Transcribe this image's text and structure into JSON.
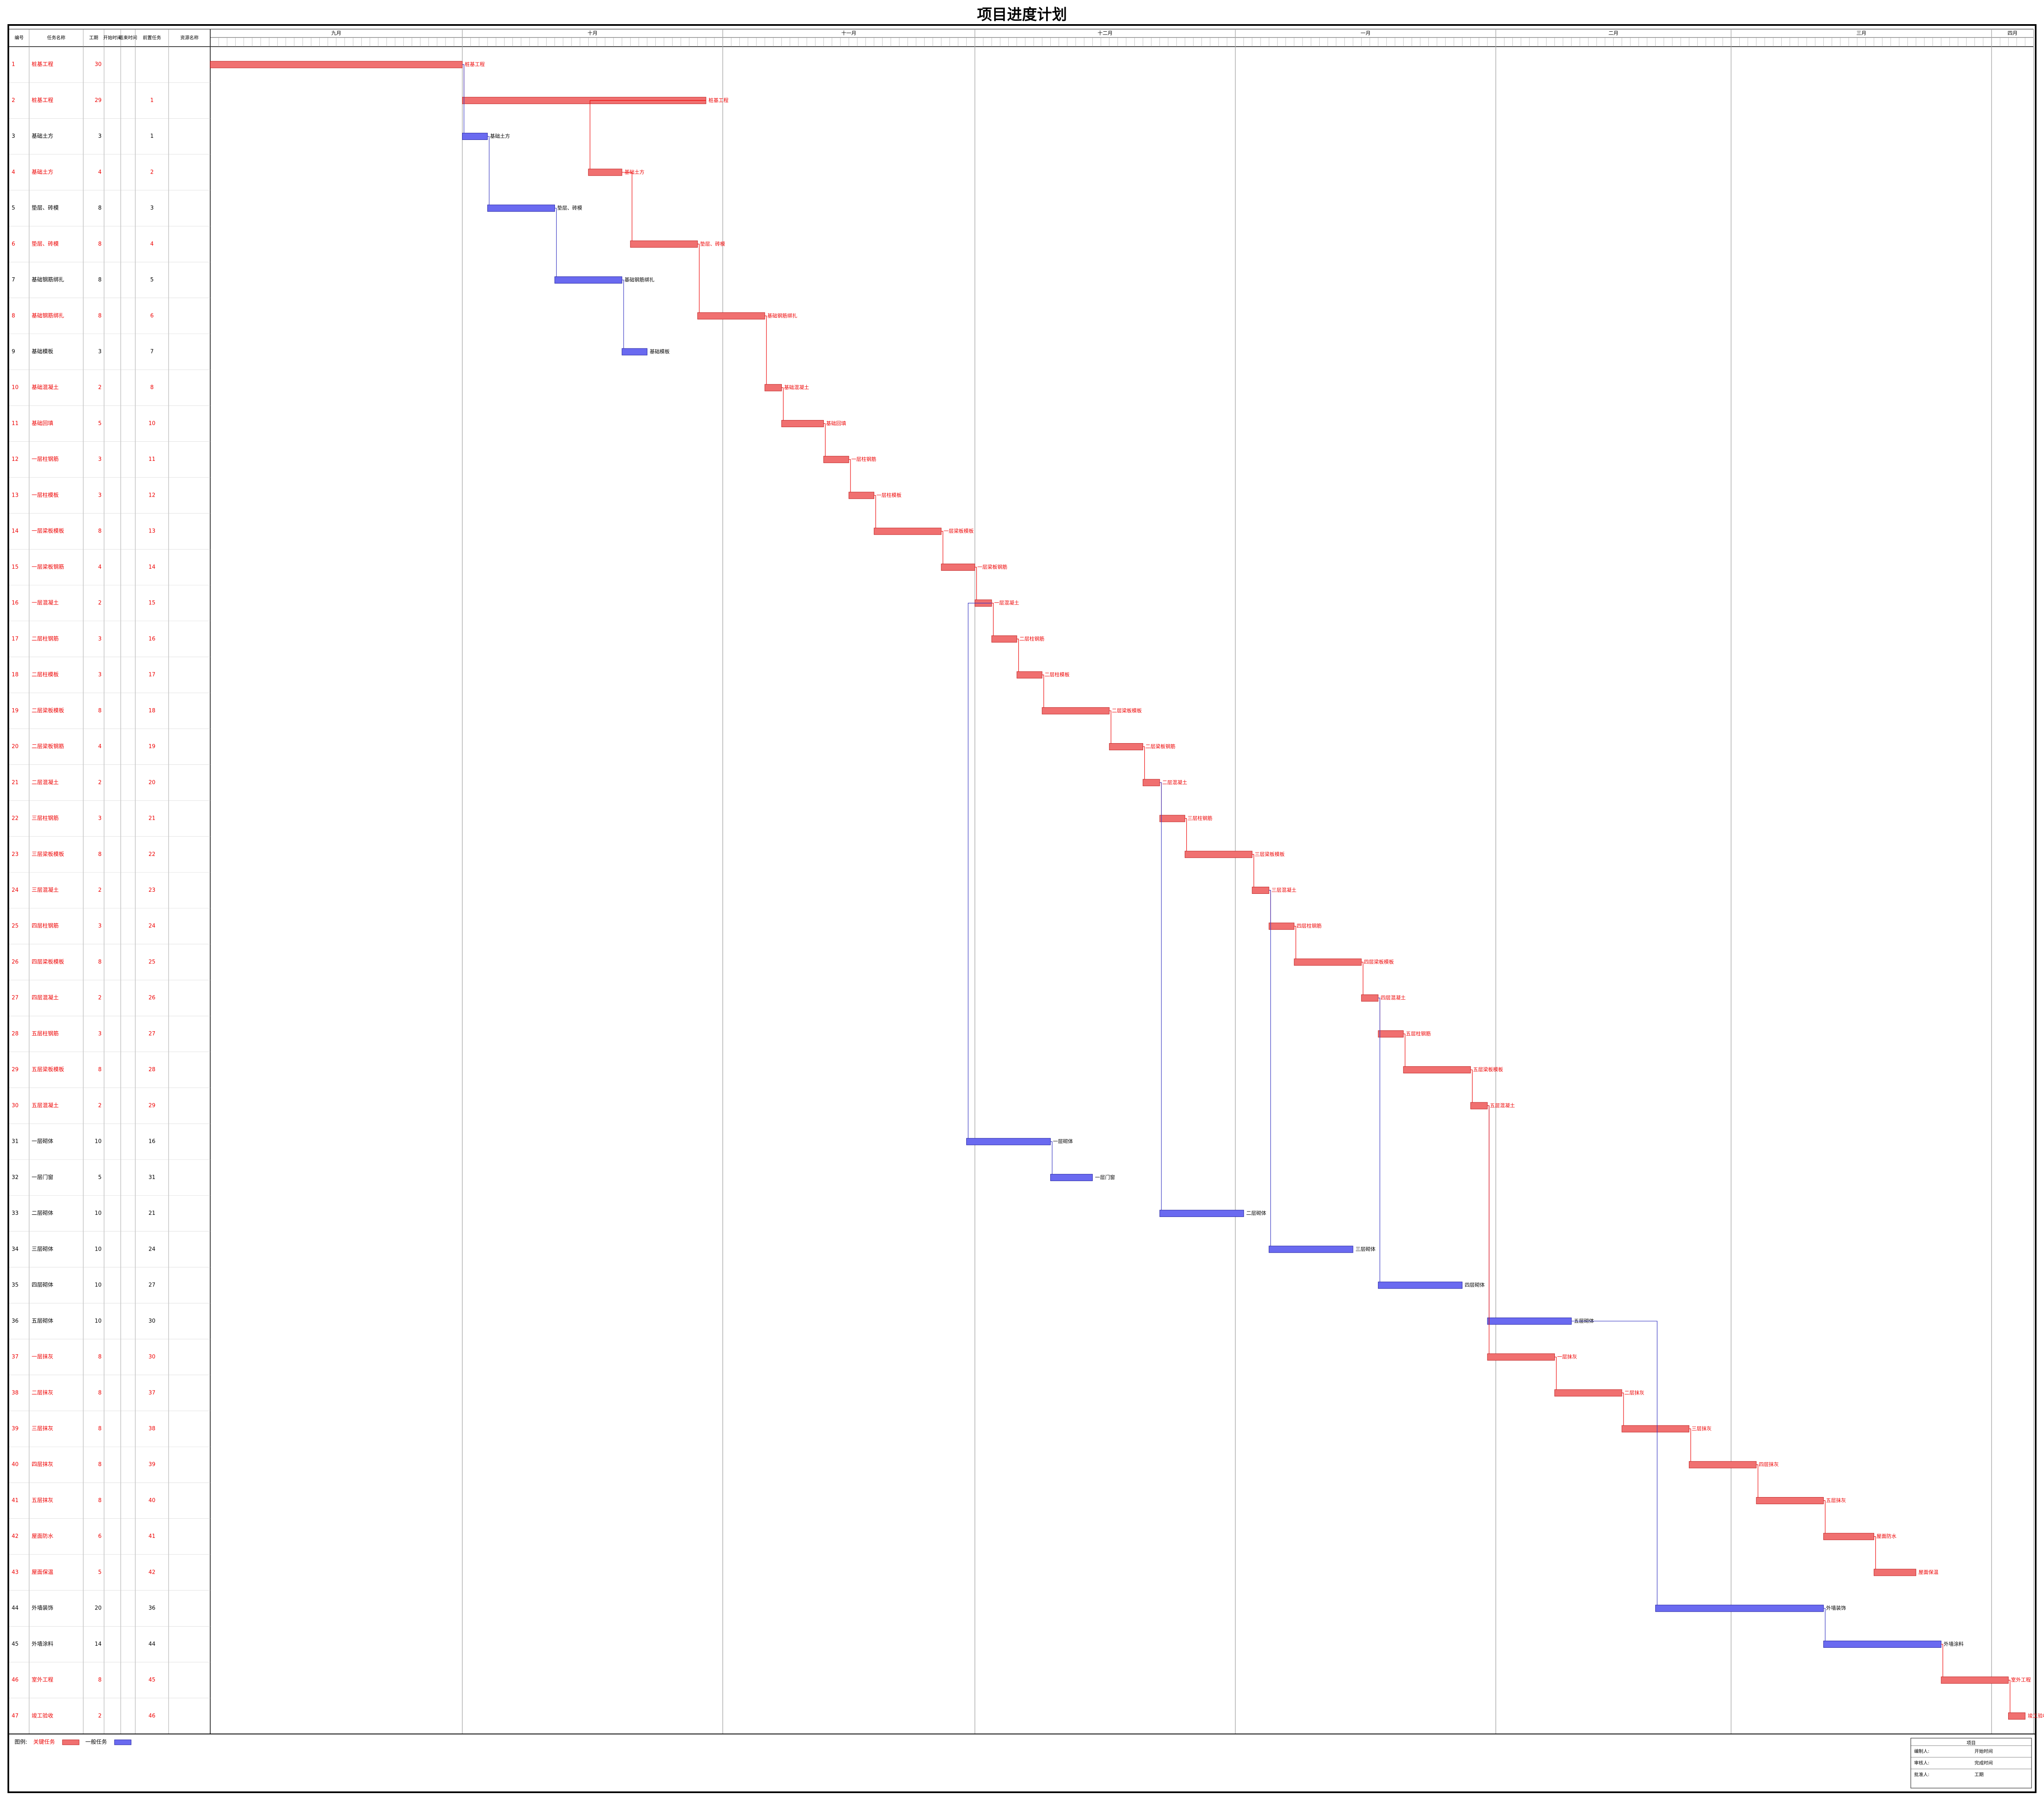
{
  "title": "项目进度计划",
  "table": {
    "headers": [
      "编号",
      "任务名称",
      "工期",
      "开始时间",
      "结束时间",
      "前置任务",
      "资源名称"
    ]
  },
  "timeline": {
    "months": [
      {
        "name": "九月",
        "days": 30
      },
      {
        "name": "十月",
        "days": 31
      },
      {
        "name": "十一月",
        "days": 30
      },
      {
        "name": "十二月",
        "days": 31
      },
      {
        "name": "一月",
        "days": 31
      },
      {
        "name": "二月",
        "days": 28
      },
      {
        "name": "三月",
        "days": 31
      },
      {
        "name": "四月",
        "days": 5
      }
    ]
  },
  "tasks": [
    {
      "id": 1,
      "name": "桩基工程",
      "duration": 30,
      "start": 0,
      "pred": null,
      "critical": true
    },
    {
      "id": 2,
      "name": "桩基工程",
      "duration": 29,
      "start": 30,
      "pred": 1,
      "critical": true
    },
    {
      "id": 3,
      "name": "基础土方",
      "duration": 3,
      "start": 30,
      "pred": 1,
      "critical": false
    },
    {
      "id": 4,
      "name": "基础土方",
      "duration": 4,
      "start": 45,
      "pred": 2,
      "critical": true
    },
    {
      "id": 5,
      "name": "垫层、砖模",
      "duration": 8,
      "start": 33,
      "pred": 3,
      "critical": false
    },
    {
      "id": 6,
      "name": "垫层、砖模",
      "duration": 8,
      "start": 50,
      "pred": 4,
      "critical": true
    },
    {
      "id": 7,
      "name": "基础钢筋绑扎",
      "duration": 8,
      "start": 41,
      "pred": 5,
      "critical": false
    },
    {
      "id": 8,
      "name": "基础钢筋绑扎",
      "duration": 8,
      "start": 58,
      "pred": 6,
      "critical": true
    },
    {
      "id": 9,
      "name": "基础模板",
      "duration": 3,
      "start": 49,
      "pred": 7,
      "critical": false
    },
    {
      "id": 10,
      "name": "基础混凝土",
      "duration": 2,
      "start": 66,
      "pred": 8,
      "critical": true
    },
    {
      "id": 11,
      "name": "基础回填",
      "duration": 5,
      "start": 68,
      "pred": 10,
      "critical": true
    },
    {
      "id": 12,
      "name": "一层柱钢筋",
      "duration": 3,
      "start": 73,
      "pred": 11,
      "critical": true
    },
    {
      "id": 13,
      "name": "一层柱模板",
      "duration": 3,
      "start": 76,
      "pred": 12,
      "critical": true
    },
    {
      "id": 14,
      "name": "一层梁板模板",
      "duration": 8,
      "start": 79,
      "pred": 13,
      "critical": true
    },
    {
      "id": 15,
      "name": "一层梁板钢筋",
      "duration": 4,
      "start": 87,
      "pred": 14,
      "critical": true
    },
    {
      "id": 16,
      "name": "一层混凝土",
      "duration": 2,
      "start": 91,
      "pred": 15,
      "critical": true
    },
    {
      "id": 17,
      "name": "二层柱钢筋",
      "duration": 3,
      "start": 93,
      "pred": 16,
      "critical": true
    },
    {
      "id": 18,
      "name": "二层柱模板",
      "duration": 3,
      "start": 96,
      "pred": 17,
      "critical": true
    },
    {
      "id": 19,
      "name": "二层梁板模板",
      "duration": 8,
      "start": 99,
      "pred": 18,
      "critical": true
    },
    {
      "id": 20,
      "name": "二层梁板钢筋",
      "duration": 4,
      "start": 107,
      "pred": 19,
      "critical": true
    },
    {
      "id": 21,
      "name": "二层混凝土",
      "duration": 2,
      "start": 111,
      "pred": 20,
      "critical": true
    },
    {
      "id": 22,
      "name": "三层柱钢筋",
      "duration": 3,
      "start": 113,
      "pred": 21,
      "critical": true
    },
    {
      "id": 23,
      "name": "三层梁板模板",
      "duration": 8,
      "start": 116,
      "pred": 22,
      "critical": true
    },
    {
      "id": 24,
      "name": "三层混凝土",
      "duration": 2,
      "start": 124,
      "pred": 23,
      "critical": true
    },
    {
      "id": 25,
      "name": "四层柱钢筋",
      "duration": 3,
      "start": 126,
      "pred": 24,
      "critical": true
    },
    {
      "id": 26,
      "name": "四层梁板模板",
      "duration": 8,
      "start": 129,
      "pred": 25,
      "critical": true
    },
    {
      "id": 27,
      "name": "四层混凝土",
      "duration": 2,
      "start": 137,
      "pred": 26,
      "critical": true
    },
    {
      "id": 28,
      "name": "五层柱钢筋",
      "duration": 3,
      "start": 139,
      "pred": 27,
      "critical": true
    },
    {
      "id": 29,
      "name": "五层梁板模板",
      "duration": 8,
      "start": 142,
      "pred": 28,
      "critical": true
    },
    {
      "id": 30,
      "name": "五层混凝土",
      "duration": 2,
      "start": 150,
      "pred": 29,
      "critical": true
    },
    {
      "id": 31,
      "name": "一层砌体",
      "duration": 10,
      "start": 90,
      "pred": 16,
      "critical": false
    },
    {
      "id": 32,
      "name": "一层门窗",
      "duration": 5,
      "start": 100,
      "pred": 31,
      "critical": false
    },
    {
      "id": 33,
      "name": "二层砌体",
      "duration": 10,
      "start": 113,
      "pred": 21,
      "critical": false
    },
    {
      "id": 34,
      "name": "三层砌体",
      "duration": 10,
      "start": 126,
      "pred": 24,
      "critical": false
    },
    {
      "id": 35,
      "name": "四层砌体",
      "duration": 10,
      "start": 139,
      "pred": 27,
      "critical": false
    },
    {
      "id": 36,
      "name": "五层砌体",
      "duration": 10,
      "start": 152,
      "pred": 30,
      "critical": false
    },
    {
      "id": 37,
      "name": "一层抹灰",
      "duration": 8,
      "start": 152,
      "pred": 30,
      "critical": true
    },
    {
      "id": 38,
      "name": "二层抹灰",
      "duration": 8,
      "start": 160,
      "pred": 37,
      "critical": true
    },
    {
      "id": 39,
      "name": "三层抹灰",
      "duration": 8,
      "start": 168,
      "pred": 38,
      "critical": true
    },
    {
      "id": 40,
      "name": "四层抹灰",
      "duration": 8,
      "start": 176,
      "pred": 39,
      "critical": true
    },
    {
      "id": 41,
      "name": "五层抹灰",
      "duration": 8,
      "start": 184,
      "pred": 40,
      "critical": true
    },
    {
      "id": 42,
      "name": "屋面防水",
      "duration": 6,
      "start": 192,
      "pred": 41,
      "critical": true
    },
    {
      "id": 43,
      "name": "屋面保温",
      "duration": 5,
      "start": 198,
      "pred": 42,
      "critical": true
    },
    {
      "id": 44,
      "name": "外墙装饰",
      "duration": 20,
      "start": 172,
      "pred": 36,
      "critical": false
    },
    {
      "id": 45,
      "name": "外墙涂料",
      "duration": 14,
      "start": 192,
      "pred": 44,
      "critical": false
    },
    {
      "id": 46,
      "name": "室外工程",
      "duration": 8,
      "start": 206,
      "pred": 45,
      "critical": true
    },
    {
      "id": 47,
      "name": "竣工验收",
      "duration": 2,
      "start": 214,
      "pred": 46,
      "critical": true
    }
  ],
  "legend": {
    "label": "图例:",
    "critical": "关键任务",
    "normal": "一般任务"
  },
  "footer": {
    "heading": "项目",
    "rows": [
      [
        "编制人:",
        "开始时间"
      ],
      [
        "审核人:",
        "完成时间"
      ],
      [
        "批准人:",
        "工期"
      ]
    ]
  }
}
